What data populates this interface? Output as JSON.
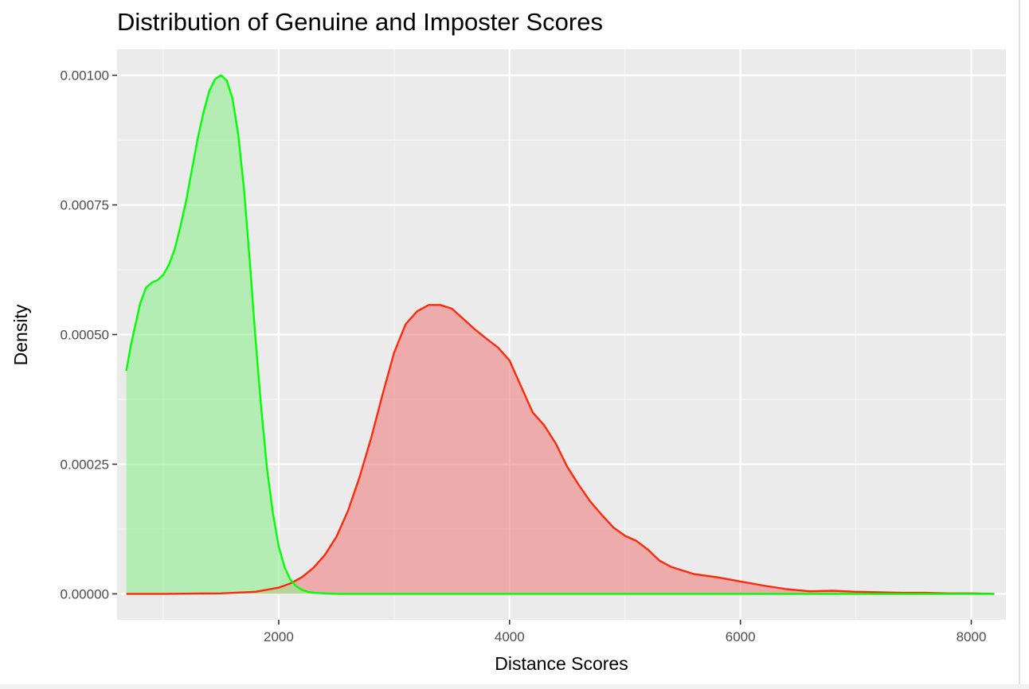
{
  "colors": {
    "panel_bg": "#ebebeb",
    "grid_major": "#ffffff",
    "grid_minor": "#f5f5f5",
    "genuine_line": "#00ff00",
    "genuine_fill": "#90ee90",
    "imposter_line": "#ff2a0a",
    "imposter_fill": "#f08080",
    "tick_text": "#4d4d4d"
  },
  "chart_data": {
    "type": "area",
    "title": "Distribution of Genuine and Imposter Scores",
    "xlabel": "Distance Scores",
    "ylabel": "Density",
    "xlim": [
      600,
      8300
    ],
    "ylim": [
      -5e-05,
      0.00105
    ],
    "x_ticks": [
      2000,
      4000,
      6000,
      8000
    ],
    "x_tick_labels": [
      "2000",
      "4000",
      "6000",
      "8000"
    ],
    "y_ticks": [
      0,
      0.00025,
      0.0005,
      0.00075,
      0.001
    ],
    "y_tick_labels": [
      "0.00000",
      "0.00025",
      "0.00050",
      "0.00075",
      "0.00100"
    ],
    "grid": true,
    "legend": "none",
    "series": [
      {
        "line_color": "#ff2a0a",
        "fill_color": "#f08080",
        "x": [
          680,
          1000,
          1500,
          1800,
          2000,
          2100,
          2200,
          2300,
          2400,
          2500,
          2600,
          2700,
          2800,
          2900,
          3000,
          3100,
          3200,
          3300,
          3400,
          3500,
          3600,
          3700,
          3800,
          3900,
          4000,
          4100,
          4200,
          4300,
          4400,
          4500,
          4600,
          4700,
          4800,
          4900,
          5000,
          5100,
          5200,
          5300,
          5400,
          5500,
          5600,
          5800,
          6000,
          6200,
          6400,
          6600,
          6800,
          7000,
          7200,
          7400,
          7600,
          7800,
          8000,
          8200
        ],
        "y": [
          0,
          0,
          1e-06,
          4e-06,
          1.2e-05,
          2e-05,
          3.2e-05,
          5e-05,
          7.5e-05,
          0.00011,
          0.00016,
          0.000225,
          0.0003,
          0.000385,
          0.000465,
          0.00052,
          0.000545,
          0.000557,
          0.000557,
          0.00055,
          0.00053,
          0.00051,
          0.000492,
          0.000475,
          0.00045,
          0.0004,
          0.00035,
          0.000325,
          0.00029,
          0.000245,
          0.00021,
          0.000178,
          0.000152,
          0.000128,
          0.000112,
          0.000102,
          8.5e-05,
          6.4e-05,
          5.2e-05,
          4.5e-05,
          3.8e-05,
          3.2e-05,
          2.4e-05,
          1.6e-05,
          9e-06,
          5e-06,
          6e-06,
          4e-06,
          3e-06,
          2e-06,
          2e-06,
          1e-06,
          1e-06,
          0
        ]
      },
      {
        "line_color": "#00ff00",
        "fill_color": "#90ee90",
        "x": [
          680,
          720,
          760,
          800,
          850,
          900,
          950,
          1000,
          1050,
          1100,
          1150,
          1200,
          1250,
          1300,
          1350,
          1400,
          1450,
          1500,
          1550,
          1600,
          1650,
          1700,
          1750,
          1800,
          1850,
          1900,
          1950,
          2000,
          2050,
          2100,
          2150,
          2200,
          2250,
          2300,
          2400,
          2500,
          2700,
          3000,
          4000,
          5000,
          6000,
          7000,
          8000,
          8200
        ],
        "y": [
          0.00043,
          0.00048,
          0.00052,
          0.00056,
          0.00059,
          0.0006,
          0.000605,
          0.000615,
          0.000635,
          0.000665,
          0.00071,
          0.00076,
          0.00082,
          0.00088,
          0.00093,
          0.00097,
          0.000993,
          0.001,
          0.00099,
          0.000955,
          0.000885,
          0.00078,
          0.00064,
          0.00049,
          0.000355,
          0.00024,
          0.000155,
          9.2e-05,
          5.2e-05,
          2.8e-05,
          1.5e-05,
          8e-06,
          4e-06,
          2e-06,
          1e-06,
          0,
          0,
          0,
          0,
          0,
          0,
          0,
          0,
          0
        ]
      }
    ]
  }
}
